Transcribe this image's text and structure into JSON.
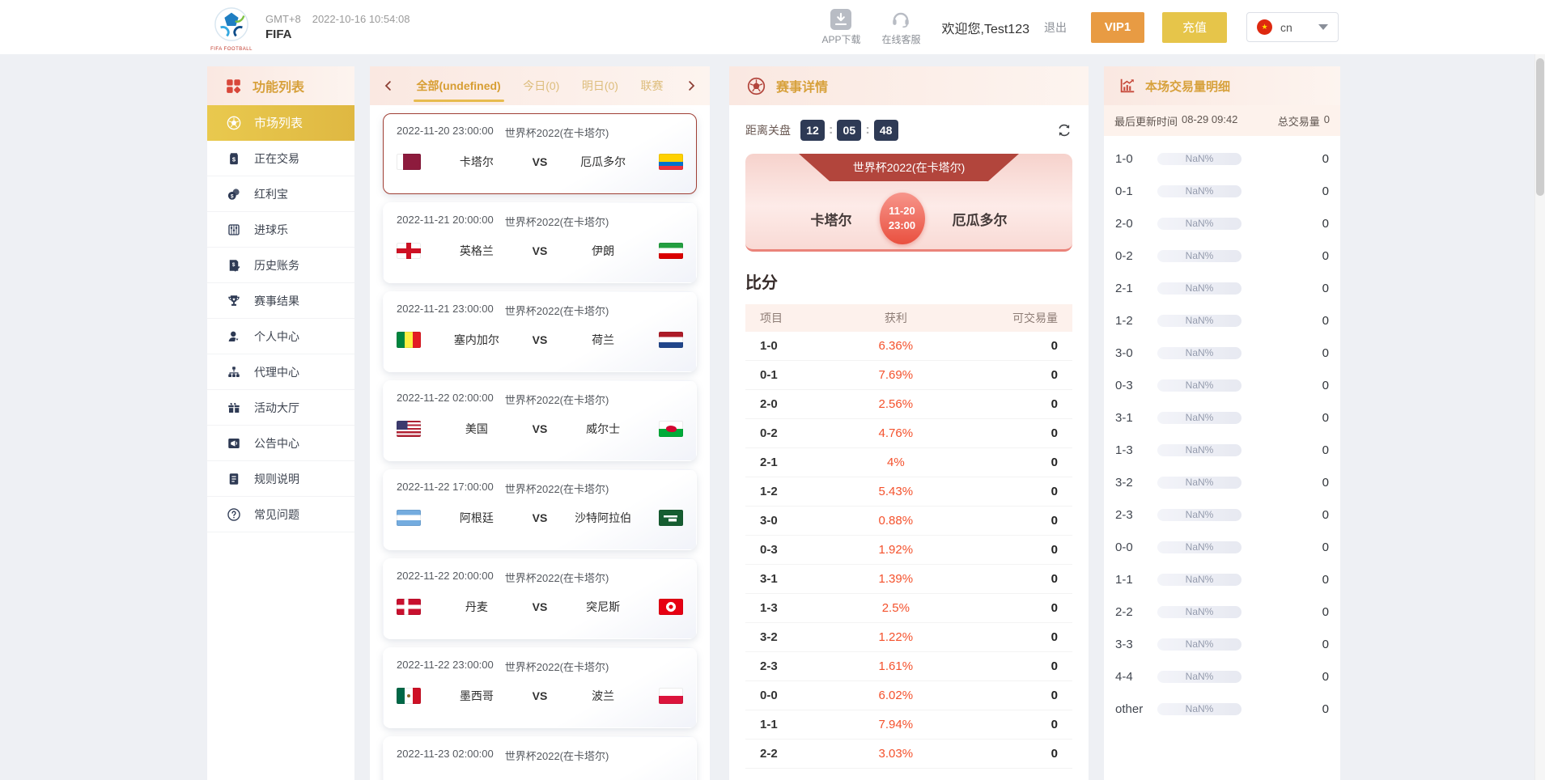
{
  "colors": {
    "accent_gold": "#d7a13c",
    "accent_red": "#b2453c",
    "active_item_bg": "#e3bf4b",
    "profit_text": "#f4512c",
    "countdown_bg": "#2e3a55",
    "selected_card_border": "#a03f35",
    "vip_button": "#e89b43",
    "recharge_button": "#e6c54a",
    "panel_header_bg": "#fae8e1"
  },
  "icons": {
    "logo": "logo",
    "grid": "grid",
    "download": "download",
    "headset": "headset",
    "football": "football",
    "refresh": "refresh",
    "chart": "chart",
    "chevron_left": "chevron-left",
    "chevron_right": "chevron-right"
  },
  "header": {
    "timezone": "GMT+8",
    "datetime": "2022-10-16 10:54:08",
    "brand": "FIFA",
    "logo_caption": "FIFA FOOTBALL",
    "app_download": "APP下载",
    "online_service": "在线客服",
    "welcome": "欢迎您,Test123",
    "logout": "退出",
    "vip": "VIP1",
    "recharge": "充值",
    "language": "cn"
  },
  "sidebar": {
    "title": "功能列表",
    "items": [
      {
        "label": "市场列表",
        "icon": "football",
        "active": true
      },
      {
        "label": "正在交易",
        "icon": "dollar"
      },
      {
        "label": "红利宝",
        "icon": "coins"
      },
      {
        "label": "进球乐",
        "icon": "abacus"
      },
      {
        "label": "历史账务",
        "icon": "ledger"
      },
      {
        "label": "赛事结果",
        "icon": "trophy"
      },
      {
        "label": "个人中心",
        "icon": "user"
      },
      {
        "label": "代理中心",
        "icon": "network"
      },
      {
        "label": "活动大厅",
        "icon": "gift"
      },
      {
        "label": "公告中心",
        "icon": "announce"
      },
      {
        "label": "规则说明",
        "icon": "rules"
      },
      {
        "label": "常见问题",
        "icon": "question"
      }
    ]
  },
  "match_list": {
    "tabs": [
      {
        "label": "全部(undefined)",
        "active": true
      },
      {
        "label": "今日(0)"
      },
      {
        "label": "明日(0)"
      },
      {
        "label": "联赛"
      }
    ],
    "vs_label": "VS",
    "matches": [
      {
        "datetime": "2022-11-20 23:00:00",
        "league": "世界杯2022(在卡塔尔)",
        "home": "卡塔尔",
        "away": "厄瓜多尔",
        "home_flag": "qatar",
        "away_flag": "ecuador",
        "selected": true
      },
      {
        "datetime": "2022-11-21 20:00:00",
        "league": "世界杯2022(在卡塔尔)",
        "home": "英格兰",
        "away": "伊朗",
        "home_flag": "england",
        "away_flag": "iran"
      },
      {
        "datetime": "2022-11-21 23:00:00",
        "league": "世界杯2022(在卡塔尔)",
        "home": "塞内加尔",
        "away": "荷兰",
        "home_flag": "senegal",
        "away_flag": "netherlands"
      },
      {
        "datetime": "2022-11-22 02:00:00",
        "league": "世界杯2022(在卡塔尔)",
        "home": "美国",
        "away": "威尔士",
        "home_flag": "usa",
        "away_flag": "wales"
      },
      {
        "datetime": "2022-11-22 17:00:00",
        "league": "世界杯2022(在卡塔尔)",
        "home": "阿根廷",
        "away": "沙特阿拉伯",
        "home_flag": "argentina",
        "away_flag": "saudi-arabia"
      },
      {
        "datetime": "2022-11-22 20:00:00",
        "league": "世界杯2022(在卡塔尔)",
        "home": "丹麦",
        "away": "突尼斯",
        "home_flag": "denmark",
        "away_flag": "tunisia"
      },
      {
        "datetime": "2022-11-22 23:00:00",
        "league": "世界杯2022(在卡塔尔)",
        "home": "墨西哥",
        "away": "波兰",
        "home_flag": "mexico",
        "away_flag": "poland"
      },
      {
        "datetime": "2022-11-23 02:00:00",
        "league": "世界杯2022(在卡塔尔)",
        "home": "",
        "away": "",
        "home_flag": "none",
        "away_flag": "none"
      }
    ]
  },
  "detail": {
    "title": "赛事详情",
    "countdown_label": "距离关盘",
    "countdown_sep": ":",
    "countdown": {
      "h": "12",
      "m": "05",
      "s": "48"
    },
    "league": "世界杯2022(在卡塔尔)",
    "home": "卡塔尔",
    "away": "厄瓜多尔",
    "badge_date": "11-20",
    "badge_time": "23:00",
    "score_title": "比分",
    "table": {
      "headers": [
        "项目",
        "获利",
        "可交易量"
      ],
      "rows": [
        {
          "item": "1-0",
          "profit": "6.36%",
          "volume": "0"
        },
        {
          "item": "0-1",
          "profit": "7.69%",
          "volume": "0"
        },
        {
          "item": "2-0",
          "profit": "2.56%",
          "volume": "0"
        },
        {
          "item": "0-2",
          "profit": "4.76%",
          "volume": "0"
        },
        {
          "item": "2-1",
          "profit": "4%",
          "volume": "0"
        },
        {
          "item": "1-2",
          "profit": "5.43%",
          "volume": "0"
        },
        {
          "item": "3-0",
          "profit": "0.88%",
          "volume": "0"
        },
        {
          "item": "0-3",
          "profit": "1.92%",
          "volume": "0"
        },
        {
          "item": "3-1",
          "profit": "1.39%",
          "volume": "0"
        },
        {
          "item": "1-3",
          "profit": "2.5%",
          "volume": "0"
        },
        {
          "item": "3-2",
          "profit": "1.22%",
          "volume": "0"
        },
        {
          "item": "2-3",
          "profit": "1.61%",
          "volume": "0"
        },
        {
          "item": "0-0",
          "profit": "6.02%",
          "volume": "0"
        },
        {
          "item": "1-1",
          "profit": "7.94%",
          "volume": "0"
        },
        {
          "item": "2-2",
          "profit": "3.03%",
          "volume": "0"
        }
      ]
    }
  },
  "volume_panel": {
    "title": "本场交易量明细",
    "last_update_label": "最后更新时间",
    "last_update_time": "08-29 09:42",
    "total_label": "总交易量",
    "total_value": "0",
    "rows": [
      {
        "item": "1-0",
        "pct": "NaN%",
        "value": "0"
      },
      {
        "item": "0-1",
        "pct": "NaN%",
        "value": "0"
      },
      {
        "item": "2-0",
        "pct": "NaN%",
        "value": "0"
      },
      {
        "item": "0-2",
        "pct": "NaN%",
        "value": "0"
      },
      {
        "item": "2-1",
        "pct": "NaN%",
        "value": "0"
      },
      {
        "item": "1-2",
        "pct": "NaN%",
        "value": "0"
      },
      {
        "item": "3-0",
        "pct": "NaN%",
        "value": "0"
      },
      {
        "item": "0-3",
        "pct": "NaN%",
        "value": "0"
      },
      {
        "item": "3-1",
        "pct": "NaN%",
        "value": "0"
      },
      {
        "item": "1-3",
        "pct": "NaN%",
        "value": "0"
      },
      {
        "item": "3-2",
        "pct": "NaN%",
        "value": "0"
      },
      {
        "item": "2-3",
        "pct": "NaN%",
        "value": "0"
      },
      {
        "item": "0-0",
        "pct": "NaN%",
        "value": "0"
      },
      {
        "item": "1-1",
        "pct": "NaN%",
        "value": "0"
      },
      {
        "item": "2-2",
        "pct": "NaN%",
        "value": "0"
      },
      {
        "item": "3-3",
        "pct": "NaN%",
        "value": "0"
      },
      {
        "item": "4-4",
        "pct": "NaN%",
        "value": "0"
      },
      {
        "item": "other",
        "pct": "NaN%",
        "value": "0"
      }
    ]
  }
}
